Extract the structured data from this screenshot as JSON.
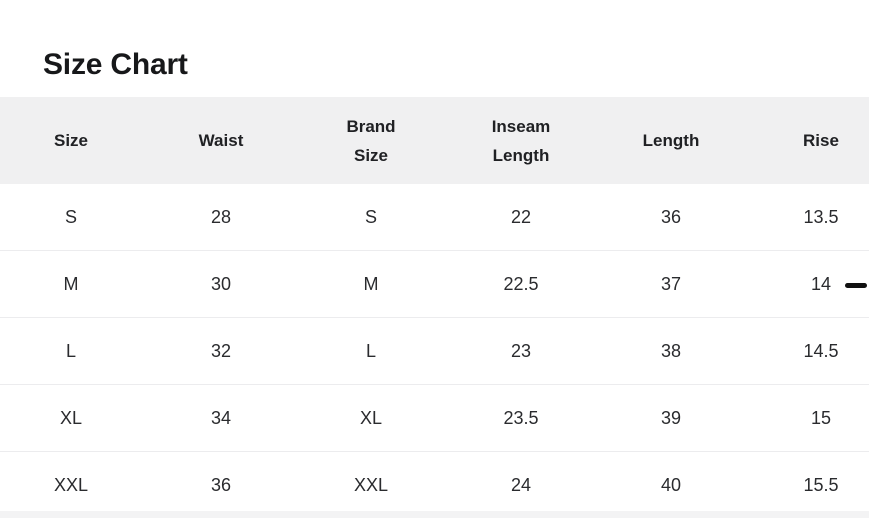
{
  "page": {
    "title": "Size Chart"
  },
  "table": {
    "columns": [
      "Size",
      "Waist",
      "Brand\nSize",
      "Inseam\nLength",
      "Length",
      "Rise"
    ],
    "rows": [
      [
        "S",
        "28",
        "S",
        "22",
        "36",
        "13.5"
      ],
      [
        "M",
        "30",
        "M",
        "22.5",
        "37",
        "14"
      ],
      [
        "L",
        "32",
        "L",
        "23",
        "38",
        "14.5"
      ],
      [
        "XL",
        "34",
        "XL",
        "23.5",
        "39",
        "15"
      ],
      [
        "XXL",
        "36",
        "XXL",
        "24",
        "40",
        "15.5"
      ]
    ]
  },
  "decorations": {
    "dash_color": "#111111"
  }
}
